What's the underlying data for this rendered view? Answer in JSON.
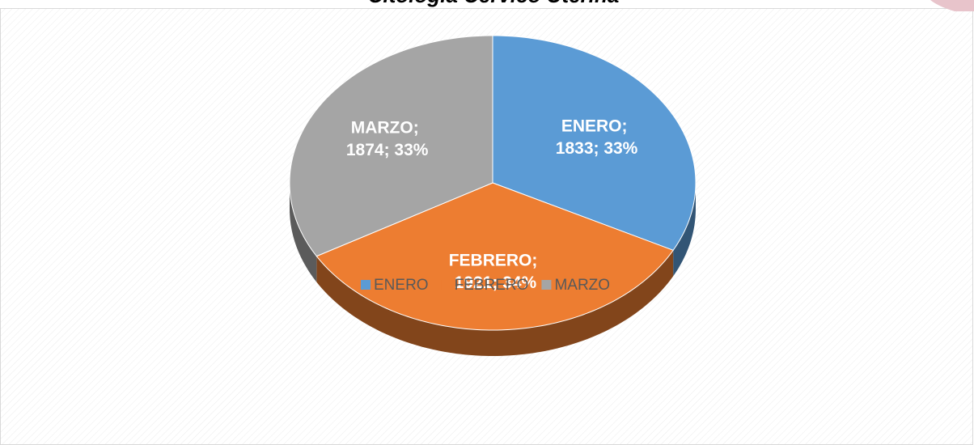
{
  "chart_data": {
    "type": "pie",
    "title": "Citología Cervico Uterina",
    "categories": [
      "ENERO",
      "FEBRERO",
      "MARZO"
    ],
    "values": [
      1833,
      1921,
      1874
    ],
    "value_labels": [
      "ENERO; 1833; 33%",
      "FEBRERO; 1921; 34%",
      "MARZO; 1874; 33%"
    ],
    "colors": [
      "#5b9bd5",
      "#ed7d31",
      "#a5a5a5"
    ],
    "legend": "bottom"
  }
}
